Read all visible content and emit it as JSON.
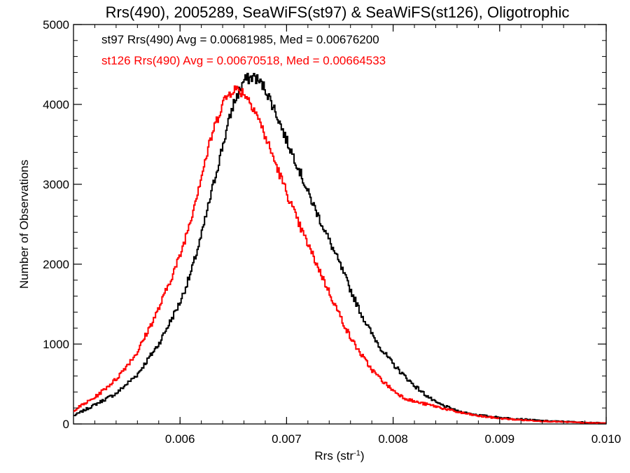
{
  "chart_data": {
    "type": "line",
    "title": "Rrs(490), 2005289, SeaWiFS(st97) & SeaWiFS(st126), Oligotrophic",
    "xlabel_main": "Rrs (str",
    "xlabel_sup": "-1",
    "xlabel_close": ")",
    "ylabel": "Number of Observations",
    "xlim": [
      0.005,
      0.01
    ],
    "ylim": [
      0,
      5000
    ],
    "xticks": [
      0.006,
      0.007,
      0.008,
      0.009,
      0.01
    ],
    "xtick_labels": [
      "0.006",
      "0.007",
      "0.008",
      "0.009",
      "0.010"
    ],
    "yticks": [
      0,
      1000,
      2000,
      3000,
      4000,
      5000
    ],
    "ytick_labels": [
      "0",
      "1000",
      "2000",
      "3000",
      "4000",
      "5000"
    ],
    "grid": false,
    "legend": "top-left",
    "annotations": [
      {
        "text": "st97 Rrs(490) Avg = 0.00681985, Med = 0.00676200",
        "color": "#000000"
      },
      {
        "text": "st126 Rrs(490) Avg = 0.00670518, Med = 0.00664533",
        "color": "#ff0000"
      }
    ],
    "series": [
      {
        "color": "#000000",
        "x": [
          0.005,
          0.0052,
          0.0054,
          0.0056,
          0.0058,
          0.006,
          0.0061,
          0.0062,
          0.0063,
          0.0064,
          0.0065,
          0.0066,
          0.0067,
          0.0068,
          0.0069,
          0.007,
          0.0071,
          0.0072,
          0.0073,
          0.0074,
          0.0075,
          0.0076,
          0.0077,
          0.0078,
          0.0079,
          0.008,
          0.0081,
          0.0082,
          0.0083,
          0.0084,
          0.0086,
          0.0088,
          0.009,
          0.0092,
          0.0094,
          0.0096,
          0.0098,
          0.01
        ],
        "y": [
          100,
          240,
          380,
          620,
          1000,
          1520,
          1880,
          2350,
          2920,
          3480,
          4000,
          4300,
          4350,
          4200,
          3900,
          3550,
          3250,
          2900,
          2600,
          2300,
          2000,
          1680,
          1380,
          1130,
          920,
          750,
          610,
          480,
          370,
          270,
          160,
          110,
          80,
          60,
          40,
          30,
          20,
          10
        ]
      },
      {
        "color": "#ff0000",
        "x": [
          0.005,
          0.0052,
          0.0054,
          0.0056,
          0.0058,
          0.006,
          0.0061,
          0.0062,
          0.0063,
          0.0064,
          0.0065,
          0.0066,
          0.0067,
          0.0068,
          0.0069,
          0.007,
          0.0071,
          0.0072,
          0.0073,
          0.0074,
          0.0075,
          0.0076,
          0.0077,
          0.0078,
          0.0079,
          0.008,
          0.0081,
          0.0082,
          0.0083,
          0.0084,
          0.0086,
          0.0088,
          0.009,
          0.0092,
          0.0094,
          0.0096,
          0.0098,
          0.01
        ],
        "y": [
          170,
          330,
          560,
          900,
          1440,
          2100,
          2560,
          3100,
          3620,
          4020,
          4200,
          4150,
          3950,
          3600,
          3250,
          2900,
          2550,
          2250,
          1950,
          1650,
          1360,
          1080,
          870,
          680,
          540,
          420,
          330,
          280,
          250,
          220,
          150,
          100,
          70,
          50,
          35,
          25,
          15,
          10
        ]
      }
    ]
  }
}
